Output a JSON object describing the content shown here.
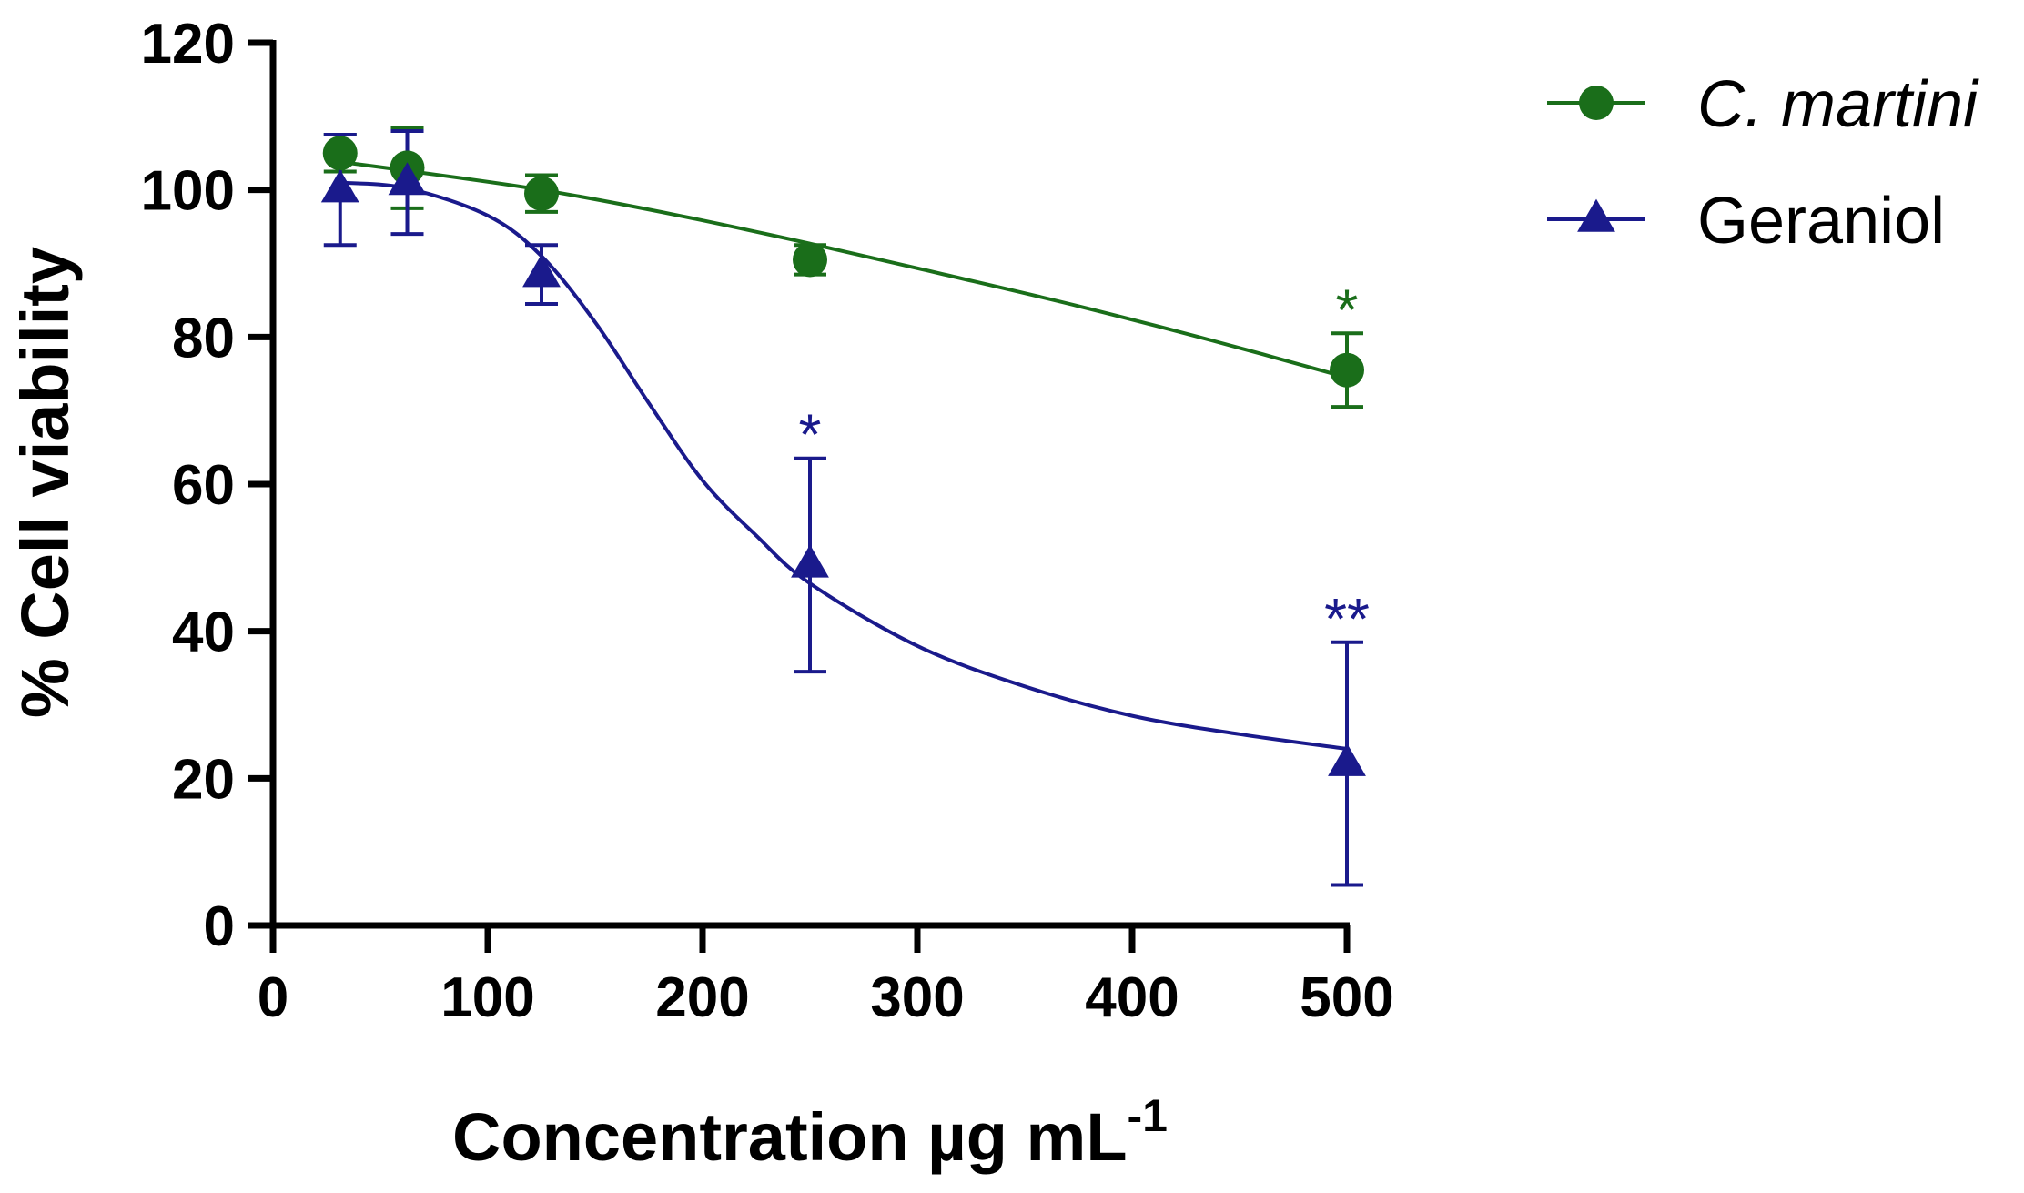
{
  "chart_data": {
    "type": "scatter",
    "title": "",
    "xlabel": "Concentration µg mL",
    "xlabel_superscript": "-1",
    "ylabel": "% Cell viability",
    "xlim": [
      0,
      500
    ],
    "ylim": [
      0,
      120
    ],
    "x_ticks": [
      "0",
      "100",
      "200",
      "300",
      "400",
      "500"
    ],
    "y_ticks": [
      "0",
      "20",
      "40",
      "60",
      "80",
      "100",
      "120"
    ],
    "grid": false,
    "legend_position": "top-right",
    "series": [
      {
        "name": "C. martini",
        "italic": true,
        "color": "#1a6e1a",
        "marker": "circle",
        "points": [
          {
            "x": 31.25,
            "y": 105,
            "err": 2.5
          },
          {
            "x": 62.5,
            "y": 103,
            "err": 5.5
          },
          {
            "x": 125,
            "y": 99.5,
            "err": 2.5
          },
          {
            "x": 250,
            "y": 90.5,
            "err": 2
          },
          {
            "x": 500,
            "y": 75.5,
            "err": 5
          }
        ],
        "fit": [
          [
            31.25,
            103.8
          ],
          [
            62.5,
            102.6
          ],
          [
            125,
            100
          ],
          [
            187.5,
            96.6
          ],
          [
            250,
            92.7
          ],
          [
            312.5,
            88.5
          ],
          [
            375,
            84.2
          ],
          [
            437.5,
            79.5
          ],
          [
            500,
            74.5
          ]
        ],
        "significance": [
          {
            "x": 500,
            "label": "*"
          }
        ]
      },
      {
        "name": "Geraniol",
        "italic": false,
        "color": "#1a1a8c",
        "marker": "triangle",
        "points": [
          {
            "x": 31.25,
            "y": 100,
            "err": 7.5
          },
          {
            "x": 62.5,
            "y": 101,
            "err": 7
          },
          {
            "x": 125,
            "y": 88.5,
            "err": 4
          },
          {
            "x": 250,
            "y": 49,
            "err": 14.5
          },
          {
            "x": 500,
            "y": 22,
            "err": 16.5
          }
        ],
        "fit": [
          [
            31.25,
            101
          ],
          [
            62.5,
            100.2
          ],
          [
            100,
            96.5
          ],
          [
            125,
            91
          ],
          [
            150,
            82
          ],
          [
            175,
            71
          ],
          [
            200,
            60.5
          ],
          [
            225,
            53
          ],
          [
            250,
            46.5
          ],
          [
            300,
            38
          ],
          [
            350,
            32.5
          ],
          [
            400,
            28.5
          ],
          [
            450,
            26
          ],
          [
            500,
            24
          ]
        ],
        "significance": [
          {
            "x": 250,
            "label": "*"
          },
          {
            "x": 500,
            "label": "**"
          }
        ]
      }
    ]
  }
}
